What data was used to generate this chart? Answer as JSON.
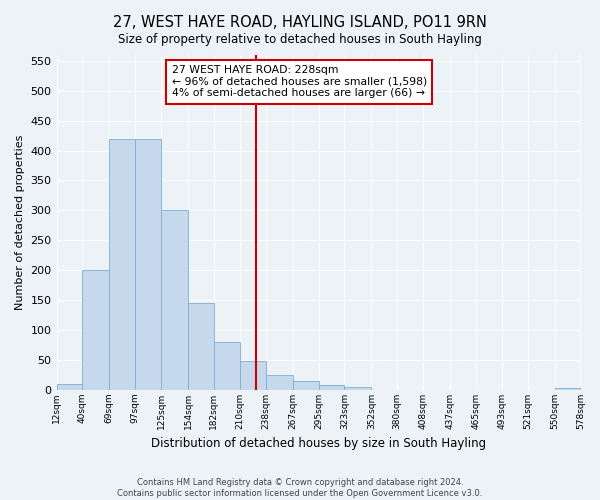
{
  "title": "27, WEST HAYE ROAD, HAYLING ISLAND, PO11 9RN",
  "subtitle": "Size of property relative to detached houses in South Hayling",
  "xlabel": "Distribution of detached houses by size in South Hayling",
  "ylabel": "Number of detached properties",
  "bin_edges": [
    12,
    40,
    69,
    97,
    125,
    154,
    182,
    210,
    238,
    267,
    295,
    323,
    352,
    380,
    408,
    437,
    465,
    493,
    521,
    550,
    578
  ],
  "bar_heights": [
    10,
    200,
    420,
    420,
    300,
    145,
    80,
    48,
    25,
    14,
    8,
    5,
    0,
    0,
    0,
    0,
    0,
    0,
    0,
    2
  ],
  "bar_color": "#c6d9ec",
  "bar_edgecolor": "#7bafd4",
  "property_size": 228,
  "vline_color": "#cc0000",
  "annotation_line1": "27 WEST HAYE ROAD: 228sqm",
  "annotation_line2": "← 96% of detached houses are smaller (1,598)",
  "annotation_line3": "4% of semi-detached houses are larger (66) →",
  "annotation_box_edgecolor": "#cc0000",
  "ylim": [
    0,
    560
  ],
  "yticks": [
    0,
    50,
    100,
    150,
    200,
    250,
    300,
    350,
    400,
    450,
    500,
    550
  ],
  "tick_labels": [
    "12sqm",
    "40sqm",
    "69sqm",
    "97sqm",
    "125sqm",
    "154sqm",
    "182sqm",
    "210sqm",
    "238sqm",
    "267sqm",
    "295sqm",
    "323sqm",
    "352sqm",
    "380sqm",
    "408sqm",
    "437sqm",
    "465sqm",
    "493sqm",
    "521sqm",
    "550sqm",
    "578sqm"
  ],
  "footer_text": "Contains HM Land Registry data © Crown copyright and database right 2024.\nContains public sector information licensed under the Open Government Licence v3.0.",
  "background_color": "#edf2f7",
  "plot_background_color": "#edf2f7",
  "grid_color": "#ffffff"
}
